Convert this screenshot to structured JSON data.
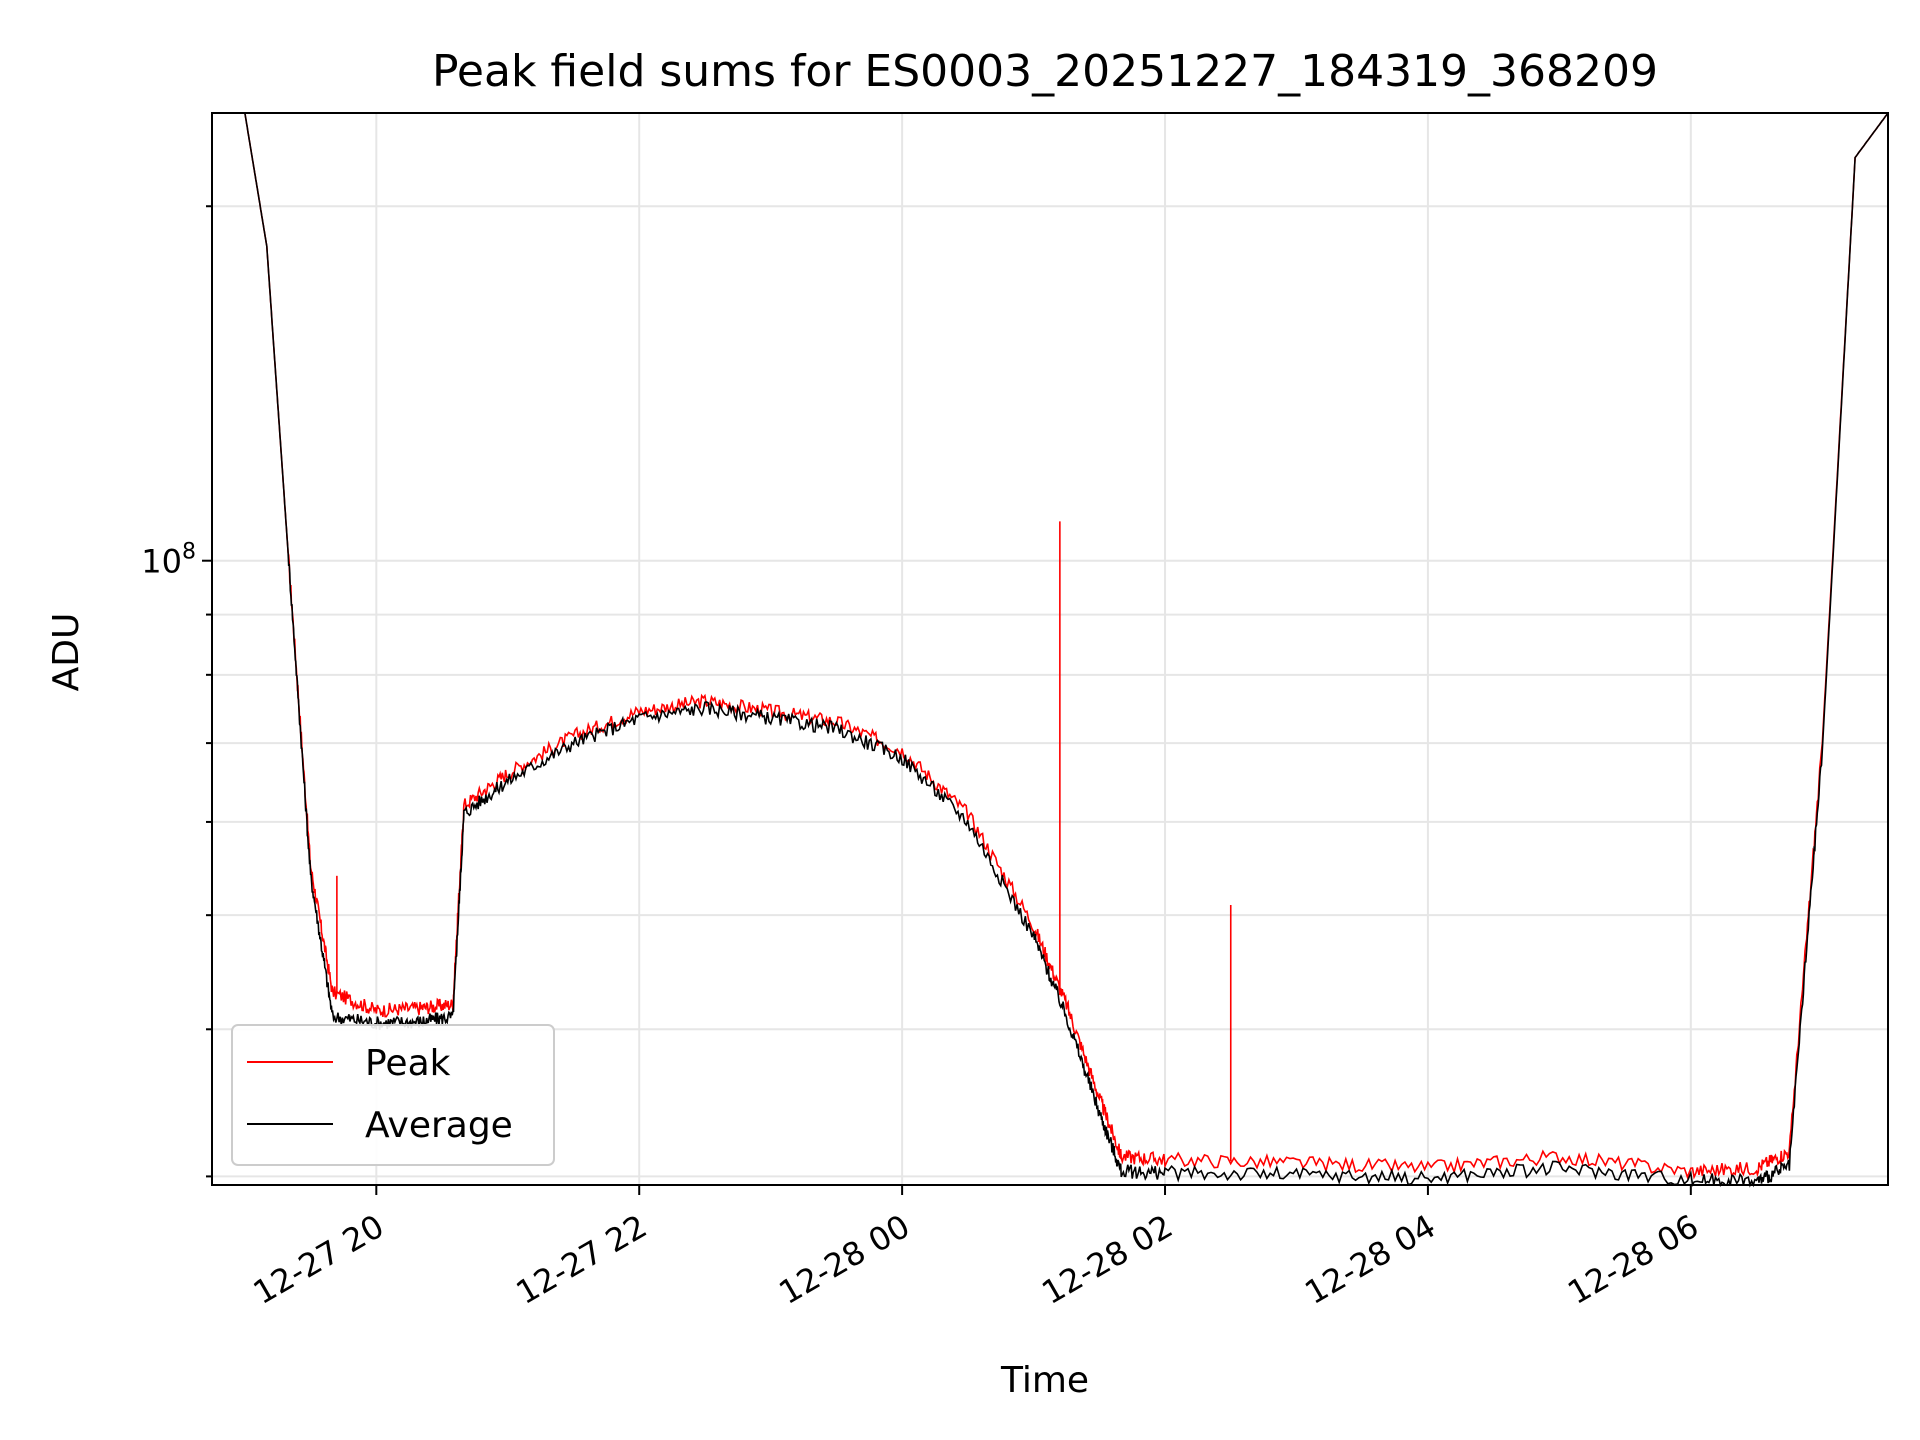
{
  "chart_data": {
    "type": "line",
    "title": "Peak field sums for ES0003_20251227_184319_368209",
    "xlabel": "Time",
    "ylabel": "ADU",
    "yscale": "log",
    "xlim": [
      "2025-12-27 18:45",
      "2025-12-28 07:30"
    ],
    "ylim": [
      29500000,
      240000000
    ],
    "grid": true,
    "legend_position": "lower-left",
    "x_ticks": [
      "12-27 20",
      "12-27 22",
      "12-28 00",
      "12-28 02",
      "12-28 04",
      "12-28 06"
    ],
    "y_ticks": [
      "10^8"
    ],
    "series": [
      {
        "name": "Peak",
        "color": "#ff0000",
        "x": [
          "2025-12-27 18:45",
          "2025-12-27 19:00",
          "2025-12-27 19:10",
          "2025-12-27 19:20",
          "2025-12-27 19:30",
          "2025-12-27 19:40",
          "2025-12-27 20:00",
          "2025-12-27 20:20",
          "2025-12-27 20:35",
          "2025-12-27 20:40",
          "2025-12-27 21:00",
          "2025-12-27 21:30",
          "2025-12-27 22:00",
          "2025-12-27 22:30",
          "2025-12-27 23:00",
          "2025-12-27 23:30",
          "2025-12-28 00:00",
          "2025-12-28 00:30",
          "2025-12-28 01:00",
          "2025-12-28 01:15",
          "2025-12-28 01:30",
          "2025-12-28 01:40",
          "2025-12-28 02:00",
          "2025-12-28 03:00",
          "2025-12-28 04:00",
          "2025-12-28 05:00",
          "2025-12-28 06:00",
          "2025-12-28 06:30",
          "2025-12-28 06:45",
          "2025-12-28 07:00",
          "2025-12-28 07:15",
          "2025-12-28 07:30"
        ],
        "values": [
          240000000,
          240000000,
          185000000,
          100000000,
          55000000,
          43000000,
          41500000,
          41700000,
          42000000,
          62000000,
          66000000,
          71000000,
          74500000,
          76000000,
          74500000,
          73000000,
          69000000,
          61000000,
          49000000,
          42000000,
          35000000,
          31200000,
          31000000,
          30800000,
          30500000,
          31200000,
          30300000,
          30500000,
          31500000,
          70000000,
          220000000,
          240000000
        ]
      },
      {
        "name": "Average",
        "color": "#000000",
        "x": [
          "2025-12-27 18:45",
          "2025-12-27 19:00",
          "2025-12-27 19:10",
          "2025-12-27 19:20",
          "2025-12-27 19:30",
          "2025-12-27 19:40",
          "2025-12-27 20:00",
          "2025-12-27 20:20",
          "2025-12-27 20:35",
          "2025-12-27 20:40",
          "2025-12-27 21:00",
          "2025-12-27 21:30",
          "2025-12-27 22:00",
          "2025-12-27 22:30",
          "2025-12-27 23:00",
          "2025-12-27 23:30",
          "2025-12-28 00:00",
          "2025-12-28 00:30",
          "2025-12-28 01:00",
          "2025-12-28 01:15",
          "2025-12-28 01:30",
          "2025-12-28 01:40",
          "2025-12-28 02:00",
          "2025-12-28 03:00",
          "2025-12-28 04:00",
          "2025-12-28 05:00",
          "2025-12-28 06:00",
          "2025-12-28 06:30",
          "2025-12-28 06:45",
          "2025-12-28 07:00",
          "2025-12-28 07:15",
          "2025-12-28 07:30"
        ],
        "values": [
          240000000,
          240000000,
          185000000,
          100000000,
          54000000,
          41000000,
          40500000,
          40600000,
          41000000,
          61000000,
          65000000,
          70000000,
          73500000,
          75000000,
          73500000,
          72000000,
          68000000,
          60000000,
          48000000,
          41000000,
          34000000,
          30300000,
          30200000,
          30100000,
          29900000,
          30500000,
          29800000,
          29700000,
          30600000,
          69000000,
          220000000,
          240000000
        ]
      }
    ],
    "spikes": [
      {
        "series": "Peak",
        "x": "2025-12-28 01:12",
        "value": 108000000
      },
      {
        "series": "Peak",
        "x": "2025-12-28 02:30",
        "value": 51000000
      },
      {
        "series": "Peak",
        "x": "2025-12-27 19:42",
        "value": 54000000
      }
    ]
  },
  "legend": {
    "items": [
      {
        "label": "Peak",
        "color": "#ff0000"
      },
      {
        "label": "Average",
        "color": "#000000"
      }
    ]
  }
}
